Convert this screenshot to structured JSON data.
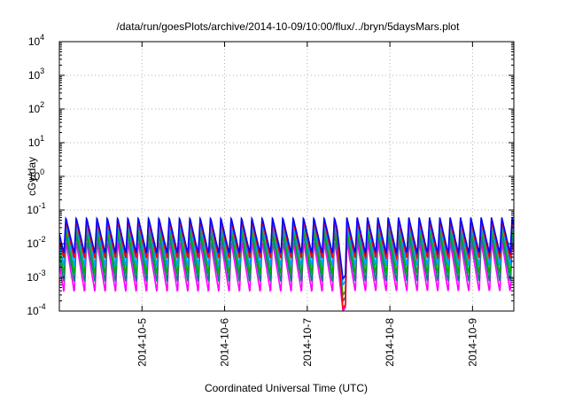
{
  "chart_data": {
    "type": "line",
    "title": "/data/run/goesPlots/archive/2014-10-09/10:00/flux/../bryn/5daysMars.plot",
    "xlabel": "Coordinated Universal Time (UTC)",
    "ylabel": "cGy/day",
    "xlim": [
      "2014-10-04T00:00",
      "2014-10-09T12:00"
    ],
    "ylim": [
      0.0001,
      10000
    ],
    "yscale": "log",
    "grid": true,
    "legend": "none",
    "x_ticks": [
      {
        "label": "2014-10-5",
        "value": "2014-10-05T00:00"
      },
      {
        "label": "2014-10-6",
        "value": "2014-10-06T00:00"
      },
      {
        "label": "2014-10-7",
        "value": "2014-10-07T00:00"
      },
      {
        "label": "2014-10-8",
        "value": "2014-10-08T00:00"
      },
      {
        "label": "2014-10-9",
        "value": "2014-10-09T00:00"
      }
    ],
    "y_ticks": [
      {
        "base": "10",
        "exp": "-4",
        "value": 0.0001
      },
      {
        "base": "10",
        "exp": "-3",
        "value": 0.001
      },
      {
        "base": "10",
        "exp": "-2",
        "value": 0.01
      },
      {
        "base": "10",
        "exp": "-1",
        "value": 0.1
      },
      {
        "base": "10",
        "exp": "0",
        "value": 1
      },
      {
        "base": "10",
        "exp": "1",
        "value": 10
      },
      {
        "base": "10",
        "exp": "2",
        "value": 100
      },
      {
        "base": "10",
        "exp": "3",
        "value": 1000
      },
      {
        "base": "10",
        "exp": "4",
        "value": 10000
      }
    ],
    "series_style": {
      "sawtooth_period_hours": 3,
      "quiet_interval": [
        "2014-10-07T08:40",
        "2014-10-07T11:30"
      ]
    },
    "series": [
      {
        "color": "#ff00ff",
        "peak": 0.012,
        "trough": 0.00035,
        "quiet": 0.0001
      },
      {
        "color": "#008080",
        "peak": 0.02,
        "trough": 0.0007,
        "quiet": 0.0002
      },
      {
        "color": "#00b000",
        "peak": 0.028,
        "trough": 0.0012,
        "quiet": 0.0003
      },
      {
        "color": "#00a0ff",
        "peak": 0.04,
        "trough": 0.002,
        "quiet": 0.0006
      },
      {
        "color": "#ff0000",
        "peak": 0.05,
        "trough": 0.0035,
        "quiet": 0.00012
      },
      {
        "color": "#0000ff",
        "peak": 0.06,
        "trough": 0.005,
        "quiet": 0.0009
      }
    ]
  }
}
